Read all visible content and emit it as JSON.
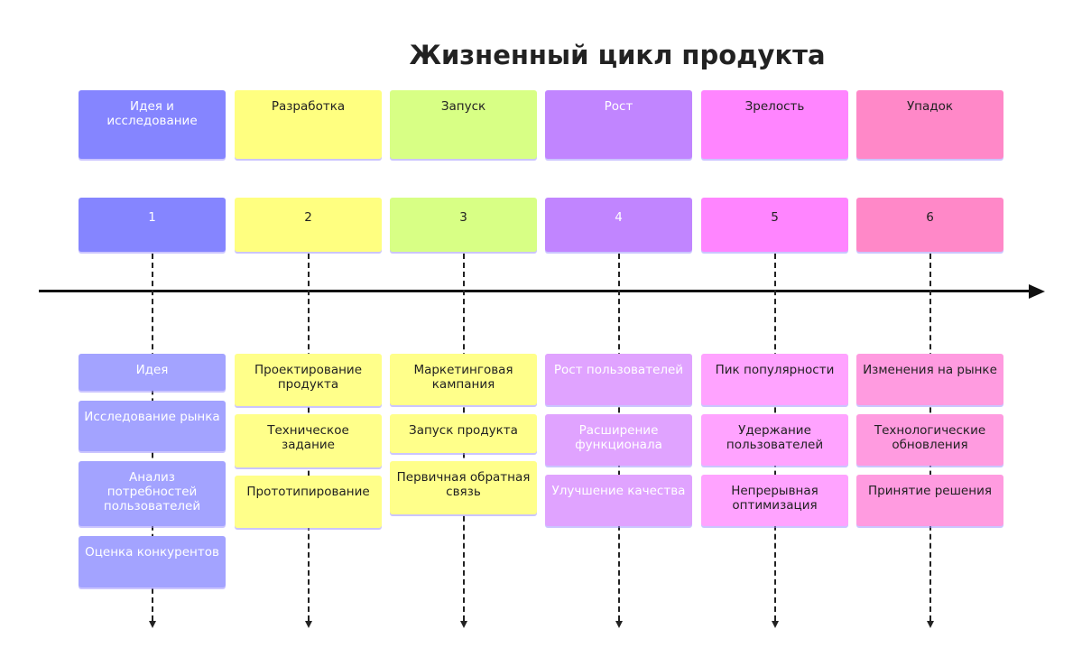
{
  "title": "Жизненный цикл продукта",
  "columns": [
    {
      "stage": "Идея и исследование",
      "number": "1",
      "header_color": "#8585ff",
      "item_color": "#a3a3ff",
      "text_color": "#ffffff",
      "items": [
        "Идея",
        "Исследование рынка",
        "Анализ потребностей пользователей",
        "Оценка конкурентов"
      ]
    },
    {
      "stage": "Разработка",
      "number": "2",
      "header_color": "#ffff80",
      "item_color": "#ffff8a",
      "text_color": "#222222",
      "items": [
        "Проектирование продукта",
        "Техническое задание",
        "Прототипирование"
      ]
    },
    {
      "stage": "Запуск",
      "number": "3",
      "header_color": "#d8ff85",
      "item_color": "#ffff8a",
      "text_color": "#222222",
      "items": [
        "Маркетинговая кампания",
        "Запуск продукта",
        "Первичная обратная связь"
      ]
    },
    {
      "stage": "Рост",
      "number": "4",
      "header_color": "#c185ff",
      "item_color": "#e0a3ff",
      "text_color": "#ffffff",
      "items": [
        "Рост пользователей",
        "Расширение функционала",
        "Улучшение качества"
      ]
    },
    {
      "stage": "Зрелость",
      "number": "5",
      "header_color": "#ff85ff",
      "item_color": "#ffa3ff",
      "text_color": "#222222",
      "items": [
        "Пик популярности",
        "Удержание пользователей",
        "Непрерывная оптимизация"
      ]
    },
    {
      "stage": "Упадок",
      "number": "6",
      "header_color": "#ff88c8",
      "item_color": "#ff9be0",
      "text_color": "#222222",
      "items": [
        "Изменения на рынке",
        "Технологические обновления",
        "Принятие решения"
      ]
    }
  ]
}
